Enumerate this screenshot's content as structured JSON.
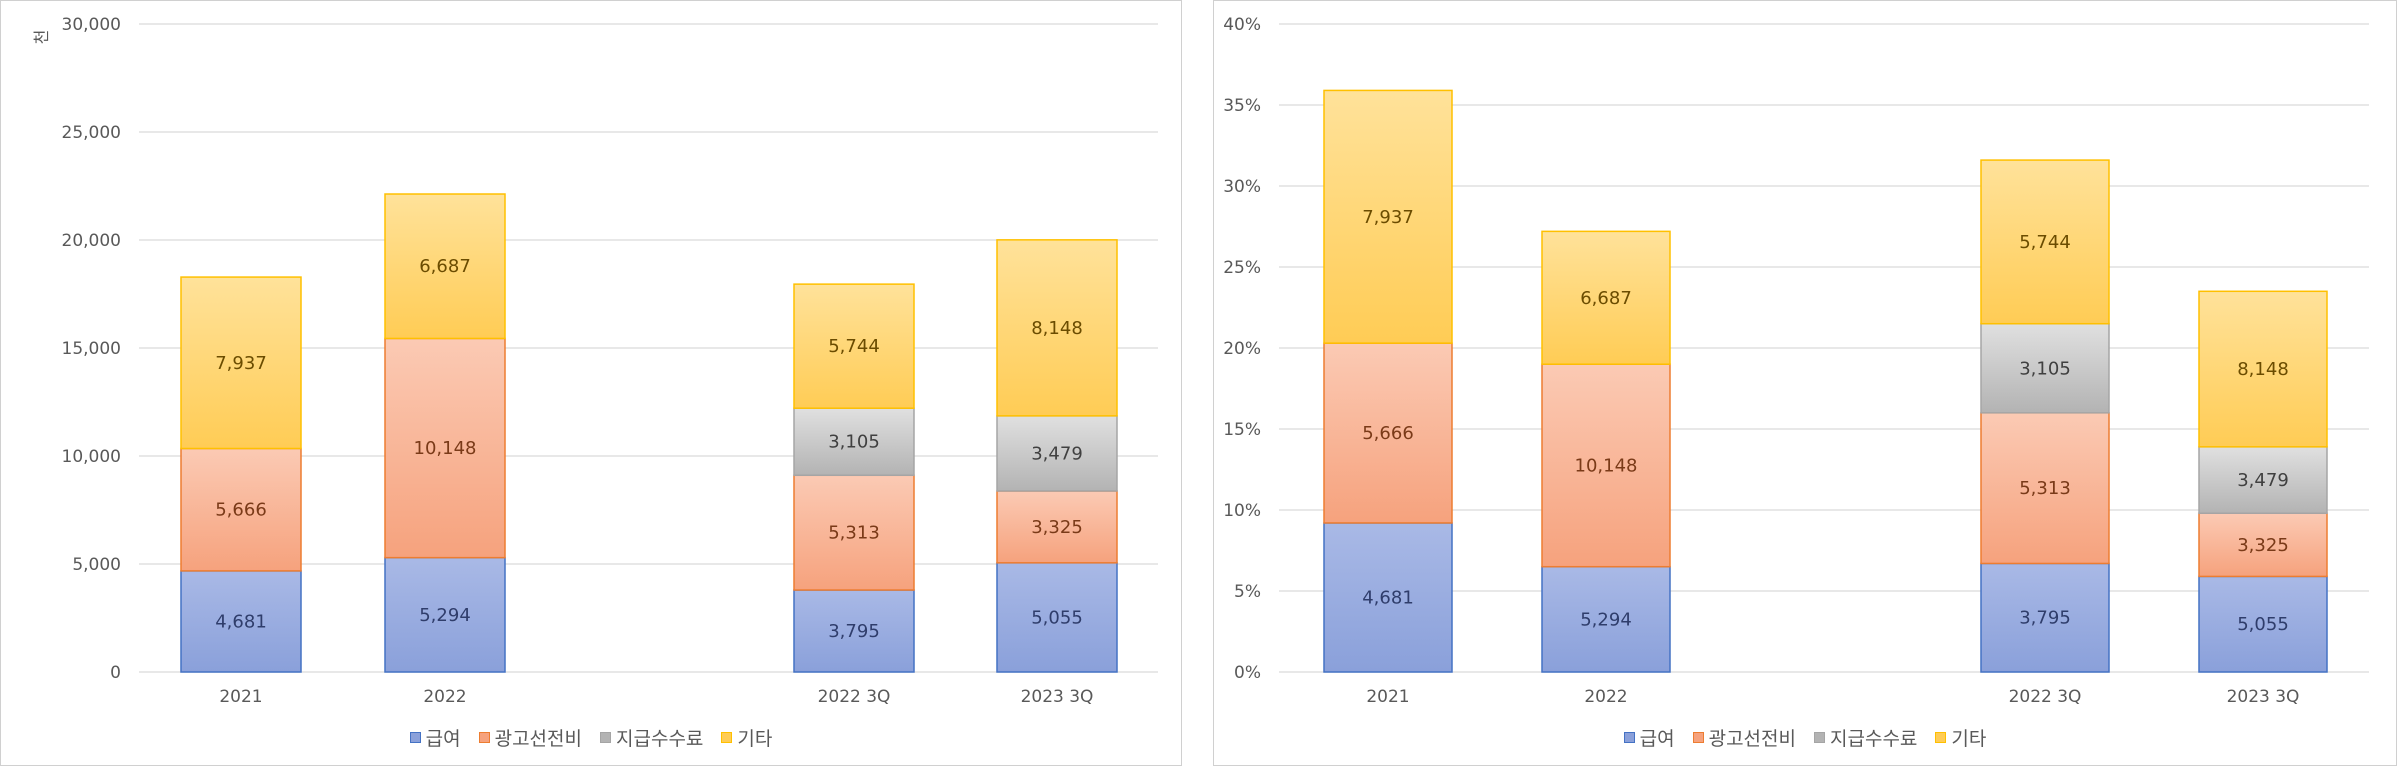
{
  "chart_data": [
    {
      "type": "bar",
      "stacked": true,
      "unit_label": "천",
      "ylim": [
        0,
        30000
      ],
      "yticks": [
        "0",
        "5,000",
        "10,000",
        "15,000",
        "20,000",
        "25,000",
        "30,000"
      ],
      "categories": [
        "2021",
        "2022",
        "2022 3Q",
        "2023 3Q"
      ],
      "series": [
        {
          "name": "급여",
          "values": [
            4681,
            5294,
            3795,
            5055
          ],
          "labels": [
            "4,681",
            "5,294",
            "3,795",
            "5,055"
          ]
        },
        {
          "name": "광고선전비",
          "values": [
            5666,
            10148,
            5313,
            3325
          ],
          "labels": [
            "5,666",
            "10,148",
            "5,313",
            "3,325"
          ]
        },
        {
          "name": "지급수수료",
          "values": [
            null,
            null,
            3105,
            3479
          ],
          "labels": [
            "",
            "",
            "3,105",
            "3,479"
          ]
        },
        {
          "name": "기타",
          "values": [
            7937,
            6687,
            5744,
            8148
          ],
          "labels": [
            "7,937",
            "6,687",
            "5,744",
            "8,148"
          ]
        }
      ],
      "grid": true,
      "legend": "bottom"
    },
    {
      "type": "bar",
      "stacked": true,
      "ylim": [
        0,
        40
      ],
      "yticks": [
        "0%",
        "5%",
        "10%",
        "15%",
        "20%",
        "25%",
        "30%",
        "35%",
        "40%"
      ],
      "categories": [
        "2021",
        "2022",
        "2022 3Q",
        "2023 3Q"
      ],
      "series": [
        {
          "name": "급여",
          "values": [
            9.2,
            6.5,
            6.7,
            5.9
          ],
          "labels": [
            "4,681",
            "5,294",
            "3,795",
            "5,055"
          ]
        },
        {
          "name": "광고선전비",
          "values": [
            11.1,
            12.5,
            9.3,
            3.9
          ],
          "labels": [
            "5,666",
            "10,148",
            "5,313",
            "3,325"
          ]
        },
        {
          "name": "지급수수료",
          "values": [
            null,
            null,
            5.5,
            4.1
          ],
          "labels": [
            "",
            "",
            "3,105",
            "3,479"
          ]
        },
        {
          "name": "기타",
          "values": [
            15.6,
            8.2,
            10.1,
            9.6
          ],
          "labels": [
            "7,937",
            "6,687",
            "5,744",
            "8,148"
          ]
        }
      ],
      "grid": true,
      "legend": "bottom"
    }
  ],
  "colors": {
    "series_fill_top": [
      "#a9b9e6",
      "#fbcab4",
      "#e0e0e0",
      "#ffe29a"
    ],
    "series_fill_bottom": [
      "#8aa0da",
      "#f6a27d",
      "#b3b3b3",
      "#ffcc55"
    ],
    "series_border": [
      "#4472c4",
      "#ed7d31",
      "#a5a5a5",
      "#ffc000"
    ],
    "label_color": [
      "#2f3d6b",
      "#7a3a18",
      "#404040",
      "#6b4c00"
    ],
    "grid": "#d9d9d9",
    "axis_text": "#595959"
  }
}
